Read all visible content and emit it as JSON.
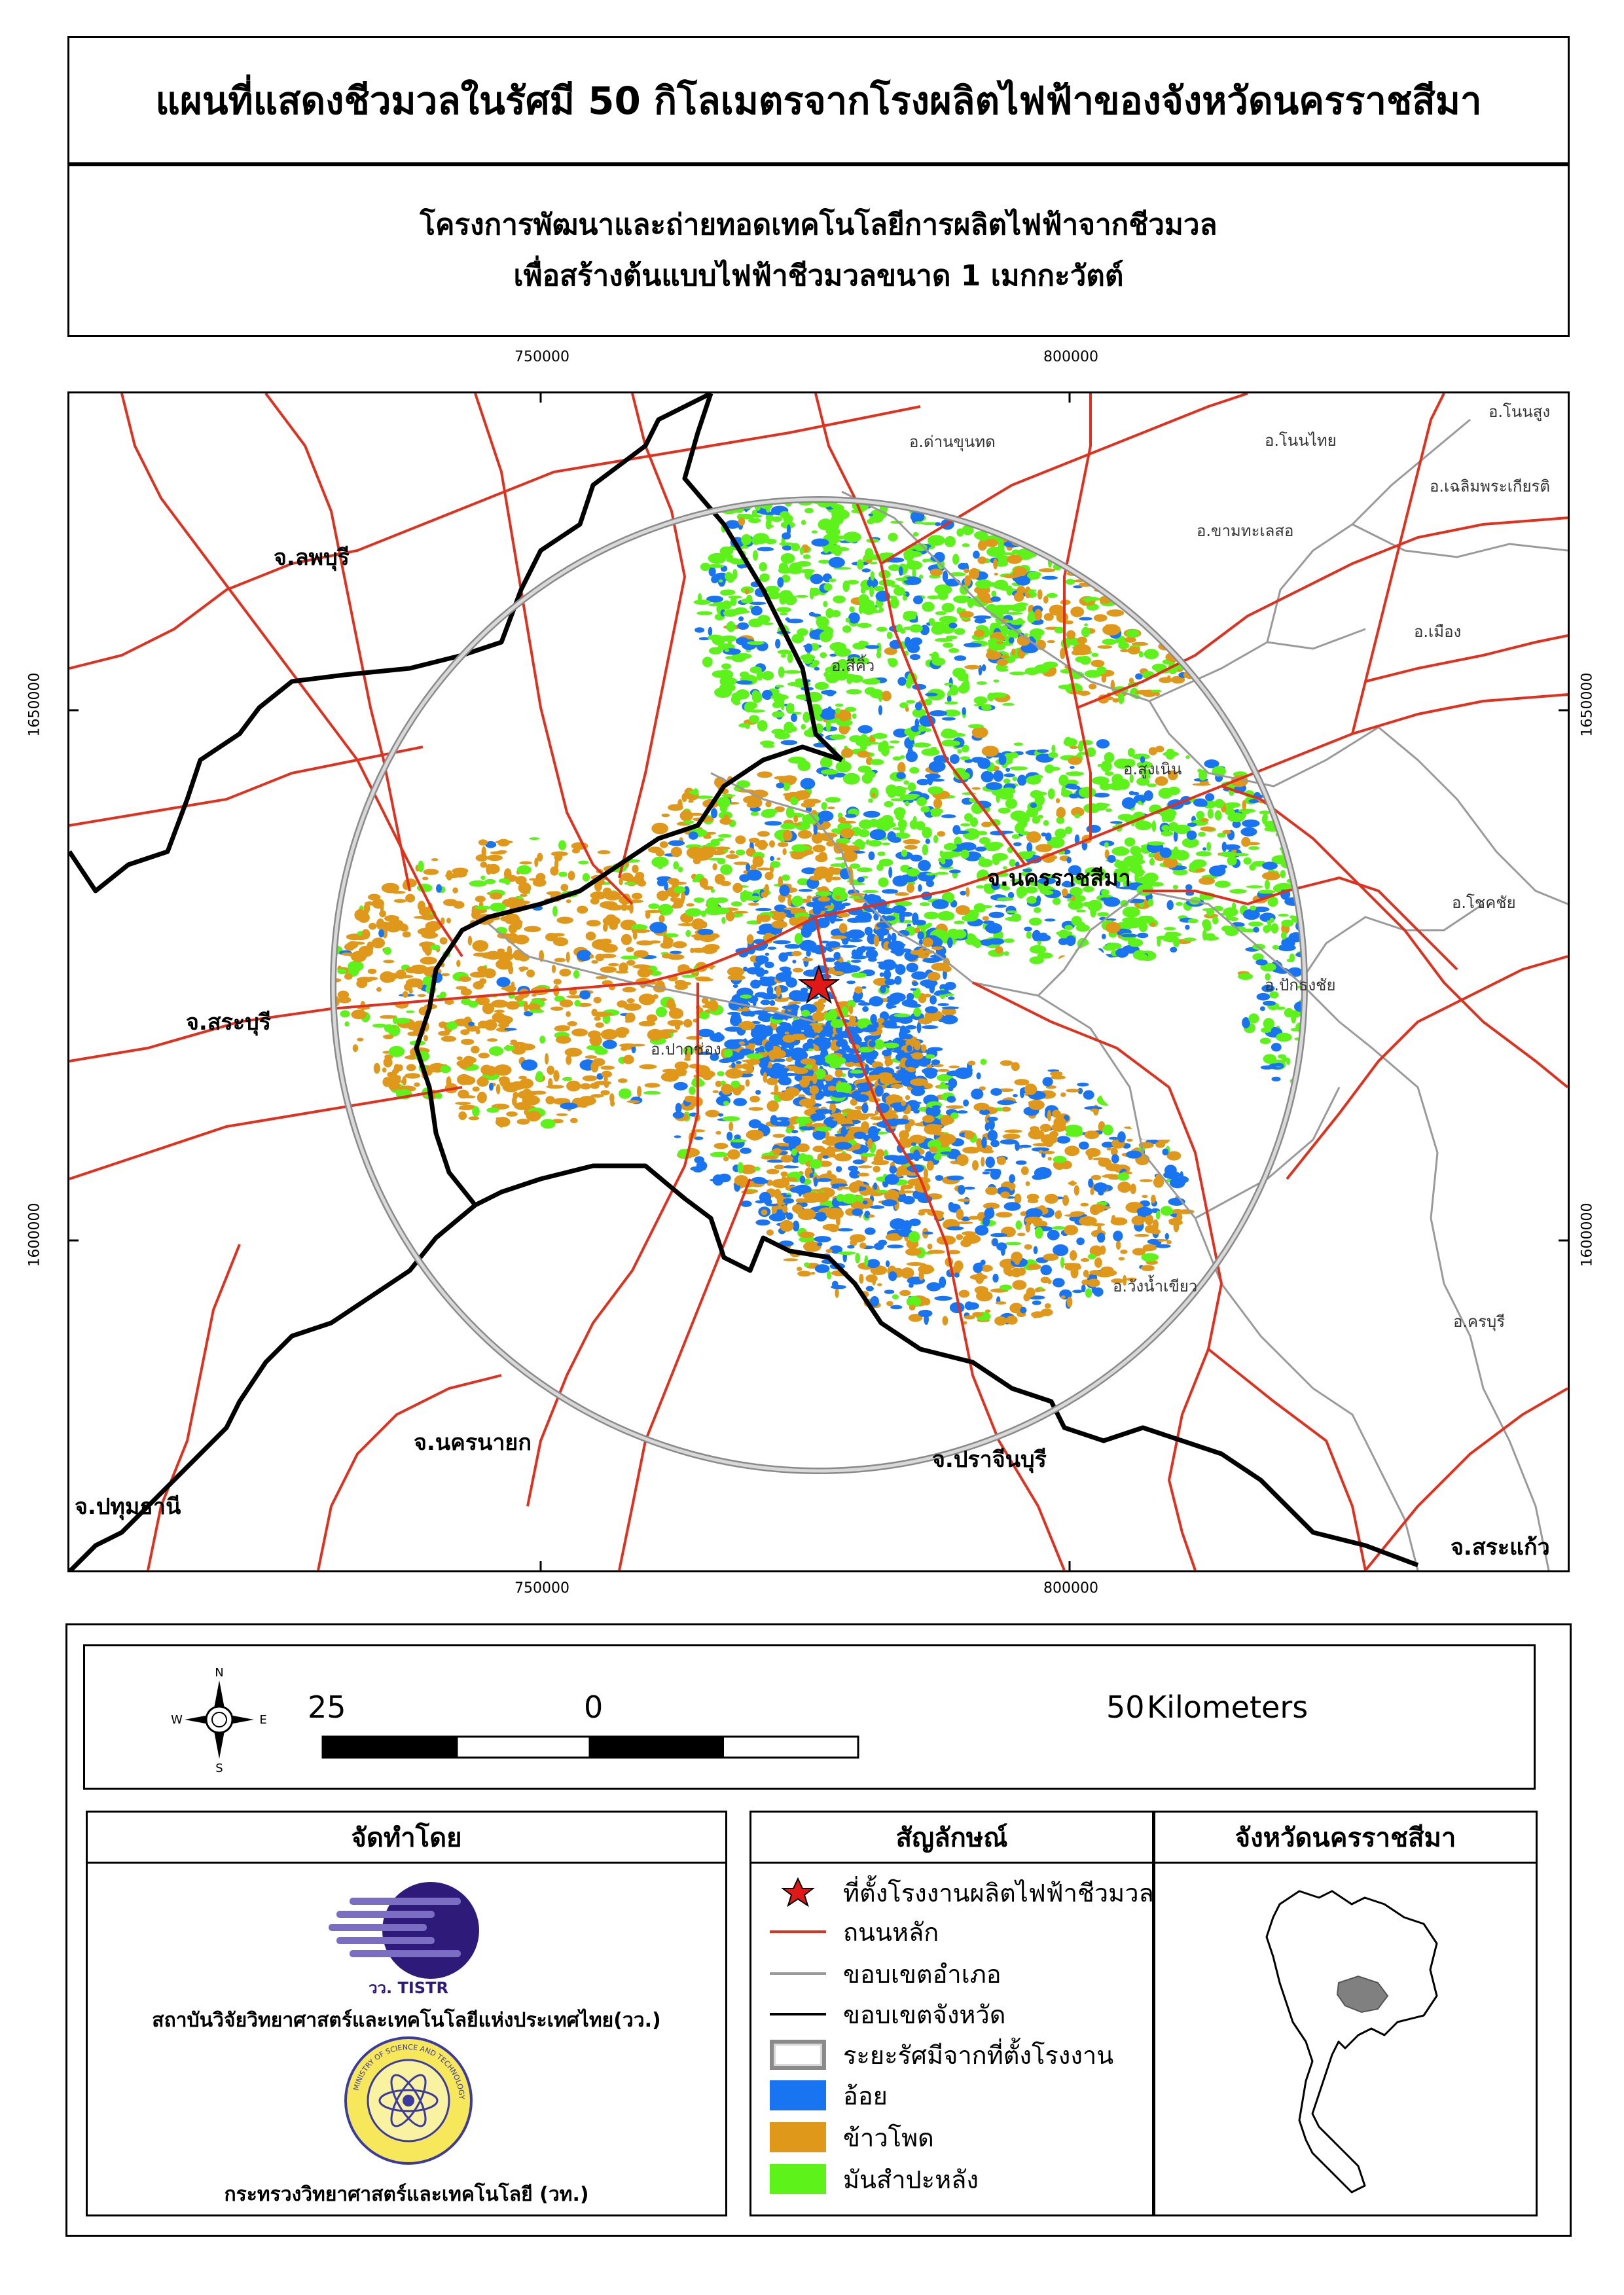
{
  "title": "แผนที่แสดงชีวมวลในรัศมี 50 กิโลเมตรจากโรงผลิตไฟฟ้าของจังหวัดนครราชสีมา",
  "subtitle": {
    "line1": "โครงการพัฒนาและถ่ายทอดเทคโนโลยีการผลิตไฟฟ้าจากชีวมวล",
    "line2": "เพื่อสร้างต้นแบบไฟฟ้าชีวมวลขนาด 1 เมกกะวัตต์"
  },
  "grid_labels": {
    "x_left": "750000",
    "x_right": "800000",
    "y_upper": "1650000",
    "y_lower": "1600000"
  },
  "provinces": {
    "lopburi": "จ.ลพบุรี",
    "saraburi": "จ.สระบุรี",
    "nakhon_nayok": "จ.นครนายก",
    "pathum_thani": "จ.ปทุมธานี",
    "prachinburi": "จ.ปราจีนบุรี",
    "sa_kaeo": "จ.สระแก้ว",
    "nakhon_ratchasima": "จ.นครราชสีมา"
  },
  "districts": {
    "dan_khun_thot": "อ.ด่านขุนทด",
    "non_thai": "อ.โนนไทย",
    "non_sung": "อ.โนนสูง",
    "chaloem_phra_kiat": "อ.เฉลิมพระเกียรติ",
    "kham_thale_so": "อ.ขามทะเลสอ",
    "mueang": "อ.เมือง",
    "sikhio": "อ.สีคิ้ว",
    "sung_noen": "อ.สูงเนิน",
    "chok_chai": "อ.โชคชัย",
    "pak_thong_chai": "อ.ปักธงชัย",
    "pak_chong": "อ.ปากช่อง",
    "wang_nam_khiao": "อ.วังน้ำเขียว",
    "khon_buri": "อ.ครบุรี"
  },
  "compass": {
    "n": "N",
    "s": "S",
    "e": "E",
    "w": "W"
  },
  "scale": {
    "left": "25",
    "mid": "0",
    "right": "50",
    "unit": "Kilometers"
  },
  "source": {
    "header": "จัดทำโดย",
    "tistr_logo_text": "วว. TISTR",
    "tistr_name": "สถาบันวิจัยวิทยาศาสตร์และเทคโนโลยีแห่งประเทศไทย(วว.)",
    "most_seal_text": "MINISTRY OF SCIENCE AND TECHNOLOGY",
    "most_name": "กระทรวงวิทยาศาสตร์และเทคโนโลยี (วท.)"
  },
  "legend": {
    "header": "สัญลักษณ์",
    "items": [
      {
        "label": "ที่ตั้งโรงงานผลิตไฟฟ้าชีวมวล",
        "color": "#e01818"
      },
      {
        "label": "ถนนหลัก",
        "color": "#e0301e"
      },
      {
        "label": "ขอบเขตอำเภอ",
        "color": "#9a9a9a"
      },
      {
        "label": "ขอบเขตจังหวัด",
        "color": "#000000"
      },
      {
        "label": "ระยะรัศมีจากที่ตั้งโรงงาน",
        "color": "#bdbdbd"
      },
      {
        "label": "อ้อย",
        "color": "#1874f0"
      },
      {
        "label": "ข้าวโพด",
        "color": "#e0981a"
      },
      {
        "label": "มันสำปะหลัง",
        "color": "#5cf21a"
      }
    ]
  },
  "inset": {
    "header": "จังหวัดนครราชสีมา"
  },
  "colors": {
    "sugarcane": "#1874f0",
    "corn": "#e0981a",
    "cassava": "#5cf21a",
    "road": "#e0301e",
    "district_boundary": "#9a9a9a",
    "province_boundary": "#000000"
  }
}
